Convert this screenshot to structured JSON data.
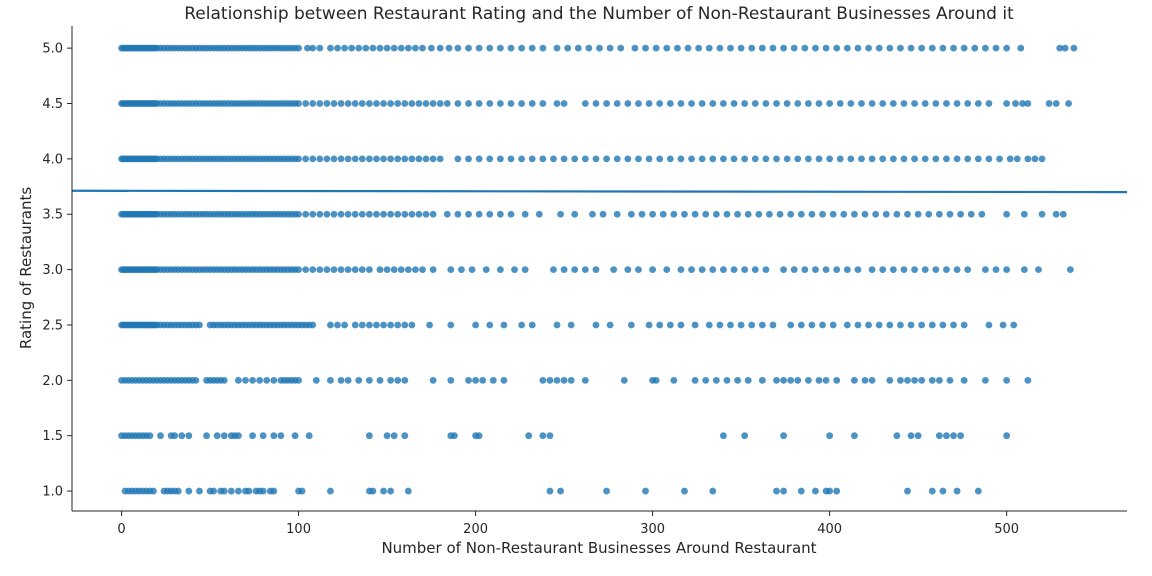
{
  "chart_data": {
    "type": "scatter",
    "title": "Relationship between Restaurant Rating and the Number of Non-Restaurant Businesses Around it",
    "xlabel": "Number of Non-Restaurant Businesses Around Restaurant",
    "ylabel": "Rating of Restaurants",
    "xlim": [
      -28,
      568
    ],
    "ylim": [
      0.82,
      5.2
    ],
    "x_ticks": [
      0,
      100,
      200,
      300,
      400,
      500
    ],
    "x_tick_labels": [
      "0",
      "100",
      "200",
      "300",
      "400",
      "500"
    ],
    "y_ticks": [
      1.0,
      1.5,
      2.0,
      2.5,
      3.0,
      3.5,
      4.0,
      4.5,
      5.0
    ],
    "y_tick_labels": [
      "1.0",
      "1.5",
      "2.0",
      "2.5",
      "3.0",
      "3.5",
      "4.0",
      "4.5",
      "5.0"
    ],
    "grid": false,
    "colors": {
      "points": "#1f77b4",
      "regression_line": "#1f77b4"
    },
    "regression_line": {
      "x": [
        -28,
        568
      ],
      "y": [
        3.712,
        3.7
      ]
    },
    "series": [
      {
        "rating": 5.0,
        "x": [
          0,
          1,
          2,
          3,
          4,
          5,
          6,
          7,
          8,
          9,
          10,
          11,
          12,
          13,
          14,
          15,
          16,
          17,
          18,
          19,
          20,
          22,
          24,
          26,
          28,
          30,
          32,
          34,
          36,
          38,
          40,
          42,
          44,
          46,
          48,
          50,
          52,
          54,
          56,
          58,
          60,
          62,
          64,
          66,
          68,
          70,
          72,
          74,
          76,
          78,
          80,
          82,
          84,
          86,
          88,
          90,
          92,
          94,
          96,
          98,
          100,
          105,
          108,
          112,
          118,
          122,
          126,
          130,
          134,
          138,
          142,
          146,
          150,
          154,
          158,
          162,
          166,
          170,
          175,
          180,
          185,
          190,
          196,
          202,
          208,
          214,
          220,
          226,
          232,
          238,
          246,
          252,
          258,
          264,
          270,
          276,
          282,
          290,
          296,
          302,
          308,
          314,
          320,
          326,
          332,
          338,
          344,
          350,
          356,
          362,
          368,
          374,
          380,
          386,
          392,
          398,
          404,
          410,
          416,
          422,
          428,
          434,
          440,
          446,
          452,
          458,
          464,
          470,
          476,
          482,
          488,
          494,
          500,
          508,
          530,
          533,
          538
        ]
      },
      {
        "rating": 4.5,
        "x": [
          0,
          1,
          2,
          3,
          4,
          5,
          6,
          7,
          8,
          9,
          10,
          11,
          12,
          13,
          14,
          15,
          16,
          17,
          18,
          19,
          20,
          22,
          24,
          26,
          28,
          30,
          32,
          34,
          36,
          38,
          40,
          42,
          44,
          46,
          48,
          50,
          52,
          54,
          56,
          58,
          60,
          62,
          64,
          66,
          68,
          70,
          72,
          74,
          76,
          78,
          80,
          82,
          84,
          86,
          88,
          90,
          92,
          94,
          96,
          98,
          100,
          104,
          108,
          112,
          116,
          120,
          124,
          128,
          132,
          136,
          140,
          144,
          148,
          152,
          156,
          160,
          164,
          168,
          172,
          176,
          180,
          184,
          190,
          196,
          202,
          208,
          214,
          220,
          226,
          232,
          238,
          246,
          250,
          262,
          268,
          274,
          280,
          286,
          292,
          298,
          304,
          310,
          316,
          322,
          328,
          334,
          340,
          346,
          352,
          358,
          364,
          370,
          376,
          382,
          388,
          394,
          400,
          406,
          412,
          418,
          424,
          430,
          436,
          442,
          448,
          454,
          460,
          466,
          472,
          478,
          484,
          490,
          500,
          505,
          509,
          512,
          524,
          528,
          535
        ]
      },
      {
        "rating": 4.0,
        "x": [
          0,
          1,
          2,
          3,
          4,
          5,
          6,
          7,
          8,
          9,
          10,
          11,
          12,
          13,
          14,
          15,
          16,
          17,
          18,
          19,
          20,
          22,
          24,
          26,
          28,
          30,
          32,
          34,
          36,
          38,
          40,
          42,
          44,
          46,
          48,
          50,
          52,
          54,
          56,
          58,
          60,
          62,
          64,
          66,
          68,
          70,
          72,
          74,
          76,
          78,
          80,
          82,
          84,
          86,
          88,
          90,
          92,
          94,
          96,
          98,
          100,
          104,
          108,
          112,
          116,
          120,
          124,
          128,
          132,
          136,
          140,
          144,
          148,
          152,
          156,
          160,
          164,
          168,
          172,
          176,
          180,
          190,
          196,
          202,
          208,
          214,
          220,
          226,
          232,
          238,
          244,
          250,
          256,
          262,
          268,
          274,
          280,
          286,
          292,
          298,
          304,
          310,
          316,
          322,
          328,
          334,
          340,
          346,
          352,
          358,
          364,
          370,
          376,
          382,
          388,
          394,
          400,
          406,
          412,
          418,
          424,
          430,
          436,
          442,
          448,
          454,
          460,
          466,
          472,
          478,
          484,
          490,
          496,
          502,
          506,
          512,
          516,
          520
        ]
      },
      {
        "rating": 3.5,
        "x": [
          0,
          1,
          2,
          3,
          4,
          5,
          6,
          7,
          8,
          9,
          10,
          11,
          12,
          13,
          14,
          15,
          16,
          17,
          18,
          19,
          20,
          22,
          24,
          26,
          28,
          30,
          32,
          34,
          36,
          38,
          40,
          42,
          44,
          46,
          48,
          50,
          52,
          54,
          56,
          58,
          60,
          62,
          64,
          66,
          68,
          70,
          72,
          74,
          76,
          78,
          80,
          82,
          84,
          86,
          88,
          90,
          92,
          94,
          96,
          98,
          100,
          104,
          108,
          112,
          116,
          120,
          124,
          128,
          132,
          136,
          140,
          144,
          148,
          152,
          156,
          160,
          164,
          168,
          172,
          176,
          184,
          190,
          196,
          202,
          208,
          214,
          220,
          228,
          236,
          248,
          256,
          266,
          272,
          280,
          288,
          294,
          300,
          306,
          312,
          318,
          324,
          330,
          336,
          342,
          348,
          354,
          360,
          366,
          372,
          378,
          384,
          390,
          396,
          402,
          408,
          414,
          420,
          426,
          432,
          438,
          444,
          450,
          456,
          462,
          468,
          474,
          480,
          486,
          500,
          510,
          520,
          528,
          532
        ]
      },
      {
        "rating": 3.0,
        "x": [
          0,
          1,
          2,
          3,
          4,
          5,
          6,
          7,
          8,
          9,
          10,
          11,
          12,
          13,
          14,
          15,
          16,
          17,
          18,
          19,
          20,
          22,
          24,
          26,
          28,
          30,
          32,
          34,
          36,
          38,
          40,
          42,
          44,
          46,
          48,
          50,
          52,
          54,
          56,
          58,
          60,
          62,
          64,
          66,
          68,
          70,
          72,
          74,
          76,
          78,
          80,
          82,
          84,
          86,
          88,
          90,
          92,
          94,
          96,
          98,
          100,
          104,
          108,
          112,
          116,
          120,
          124,
          128,
          132,
          136,
          140,
          146,
          150,
          154,
          158,
          162,
          166,
          170,
          176,
          186,
          192,
          198,
          206,
          214,
          222,
          228,
          244,
          250,
          256,
          262,
          268,
          278,
          286,
          292,
          300,
          308,
          316,
          322,
          328,
          334,
          340,
          346,
          352,
          358,
          364,
          374,
          380,
          386,
          392,
          398,
          404,
          410,
          416,
          424,
          430,
          436,
          442,
          448,
          454,
          460,
          466,
          472,
          478,
          488,
          494,
          500,
          510,
          518,
          536
        ]
      },
      {
        "rating": 2.5,
        "x": [
          0,
          1,
          2,
          3,
          4,
          5,
          6,
          7,
          8,
          9,
          10,
          11,
          12,
          13,
          14,
          15,
          16,
          17,
          18,
          19,
          20,
          22,
          24,
          26,
          28,
          30,
          32,
          34,
          36,
          38,
          40,
          42,
          44,
          50,
          52,
          54,
          56,
          58,
          60,
          62,
          64,
          66,
          68,
          70,
          72,
          74,
          76,
          78,
          80,
          82,
          84,
          86,
          88,
          90,
          92,
          94,
          96,
          98,
          100,
          102,
          104,
          106,
          108,
          118,
          122,
          126,
          132,
          136,
          140,
          144,
          148,
          152,
          156,
          160,
          164,
          174,
          186,
          200,
          208,
          216,
          226,
          232,
          246,
          254,
          268,
          276,
          288,
          298,
          304,
          310,
          316,
          324,
          332,
          338,
          344,
          350,
          356,
          362,
          368,
          378,
          384,
          390,
          396,
          402,
          410,
          416,
          422,
          428,
          434,
          440,
          446,
          452,
          458,
          464,
          470,
          476,
          490,
          498,
          504
        ]
      },
      {
        "rating": 2.0,
        "x": [
          0,
          2,
          4,
          6,
          8,
          10,
          12,
          14,
          16,
          18,
          20,
          22,
          24,
          26,
          28,
          30,
          32,
          34,
          36,
          38,
          40,
          42,
          48,
          50,
          52,
          54,
          56,
          58,
          66,
          70,
          74,
          78,
          82,
          86,
          90,
          92,
          94,
          96,
          98,
          100,
          110,
          118,
          124,
          128,
          134,
          140,
          146,
          152,
          156,
          160,
          176,
          186,
          196,
          200,
          204,
          210,
          216,
          238,
          242,
          246,
          250,
          254,
          262,
          284,
          300,
          302,
          312,
          324,
          330,
          336,
          342,
          348,
          354,
          362,
          370,
          374,
          378,
          382,
          388,
          394,
          398,
          404,
          414,
          420,
          424,
          434,
          440,
          444,
          448,
          452,
          458,
          462,
          468,
          476,
          488,
          500,
          512
        ]
      },
      {
        "rating": 1.5,
        "x": [
          0,
          2,
          4,
          6,
          8,
          10,
          12,
          14,
          16,
          22,
          28,
          30,
          34,
          38,
          48,
          54,
          58,
          62,
          64,
          66,
          74,
          80,
          86,
          90,
          98,
          106,
          140,
          150,
          154,
          160,
          186,
          188,
          200,
          202,
          230,
          238,
          242,
          340,
          352,
          374,
          400,
          414,
          438,
          446,
          450,
          462,
          466,
          470,
          474,
          500
        ]
      },
      {
        "rating": 1.0,
        "x": [
          2,
          4,
          6,
          8,
          10,
          12,
          14,
          16,
          18,
          24,
          26,
          28,
          30,
          32,
          38,
          44,
          50,
          52,
          56,
          58,
          62,
          66,
          70,
          72,
          76,
          78,
          80,
          84,
          86,
          100,
          102,
          118,
          140,
          142,
          148,
          152,
          162,
          242,
          248,
          274,
          296,
          318,
          334,
          370,
          374,
          384,
          392,
          398,
          400,
          404,
          444,
          458,
          464,
          472,
          484
        ]
      }
    ]
  }
}
